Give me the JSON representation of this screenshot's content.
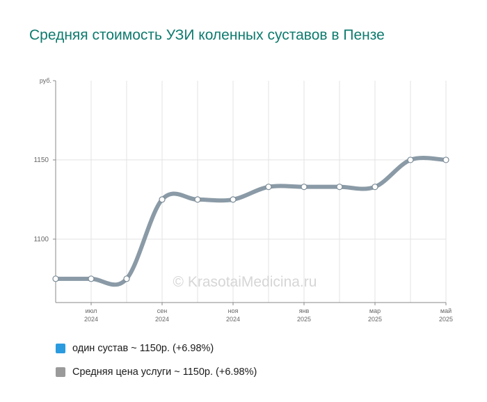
{
  "title": "Средняя стоимость УЗИ коленных суставов в Пензе",
  "watermark": "© KrasotaiMedicina.ru",
  "chart_data": {
    "type": "line",
    "x": [
      "2024-06",
      "2024-07",
      "2024-08",
      "2024-09",
      "2024-10",
      "2024-11",
      "2024-12",
      "2025-01",
      "2025-02",
      "2025-03",
      "2025-04",
      "2025-05"
    ],
    "x_tick_labels": [
      {
        "x": "2024-07",
        "month": "июл",
        "year": "2024"
      },
      {
        "x": "2024-09",
        "month": "сен",
        "year": "2024"
      },
      {
        "x": "2024-11",
        "month": "ноя",
        "year": "2024"
      },
      {
        "x": "2025-01",
        "month": "янв",
        "year": "2025"
      },
      {
        "x": "2025-03",
        "month": "мар",
        "year": "2025"
      },
      {
        "x": "2025-05",
        "month": "май",
        "year": "2025"
      }
    ],
    "y_unit_label": "руб.",
    "y_ticks": [
      1100,
      1150
    ],
    "ylim": [
      1060,
      1200
    ],
    "series": [
      {
        "color": "#8a9aa6",
        "values": [
          1075,
          1075,
          1075,
          1125,
          1125,
          1125,
          1133,
          1133,
          1133,
          1133,
          1150,
          1150
        ]
      }
    ],
    "grid": true,
    "legend_position": "bottom-left"
  },
  "legend": [
    {
      "label": "один сустав ~ 1150р. (+6.98%)",
      "color": "#2b9be0"
    },
    {
      "label": "Средняя цена услуги ~ 1150р. (+6.98%)",
      "color": "#9a9a9a"
    }
  ]
}
